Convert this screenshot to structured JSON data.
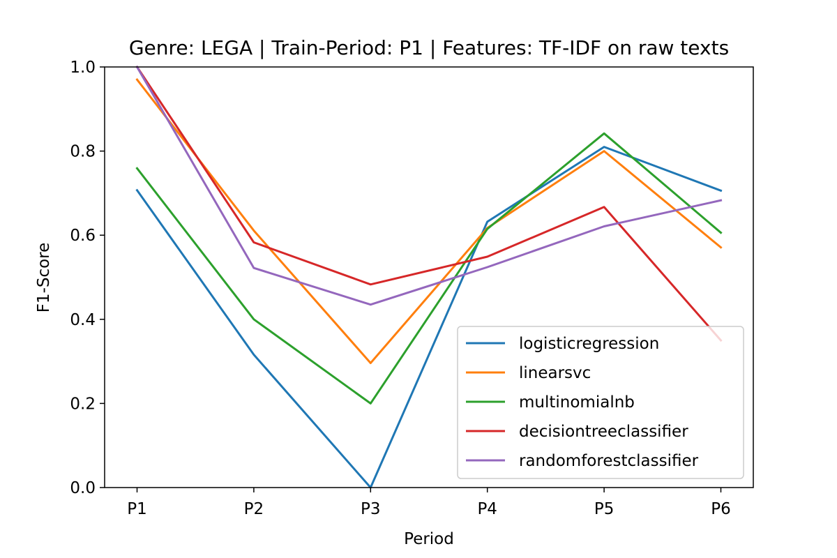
{
  "chart_data": {
    "type": "line",
    "title": "Genre: LEGA | Train-Period: P1 | Features: TF-IDF on raw texts",
    "xlabel": "Period",
    "ylabel": "F1-Score",
    "categories": [
      "P1",
      "P2",
      "P3",
      "P4",
      "P5",
      "P6"
    ],
    "ylim": [
      0.0,
      1.0
    ],
    "yticks": [
      0.0,
      0.2,
      0.4,
      0.6,
      0.8,
      1.0
    ],
    "ytick_labels": [
      "0.0",
      "0.2",
      "0.4",
      "0.6",
      "0.8",
      "1.0"
    ],
    "grid": false,
    "legend_position": "lower-right",
    "series": [
      {
        "name": "logisticregression",
        "color": "#1f77b4",
        "values": [
          0.707,
          0.316,
          0.0,
          0.632,
          0.81,
          0.706
        ]
      },
      {
        "name": "linearsvc",
        "color": "#ff7f0e",
        "values": [
          0.97,
          0.611,
          0.296,
          0.617,
          0.8,
          0.571
        ]
      },
      {
        "name": "multinomialnb",
        "color": "#2ca02c",
        "values": [
          0.759,
          0.4,
          0.2,
          0.615,
          0.842,
          0.606
        ]
      },
      {
        "name": "decisiontreeclassifier",
        "color": "#d62728",
        "values": [
          1.0,
          0.583,
          0.483,
          0.549,
          0.667,
          0.35
        ]
      },
      {
        "name": "randomforestclassifier",
        "color": "#9467bd",
        "values": [
          1.0,
          0.522,
          0.435,
          0.524,
          0.621,
          0.683
        ]
      }
    ]
  }
}
